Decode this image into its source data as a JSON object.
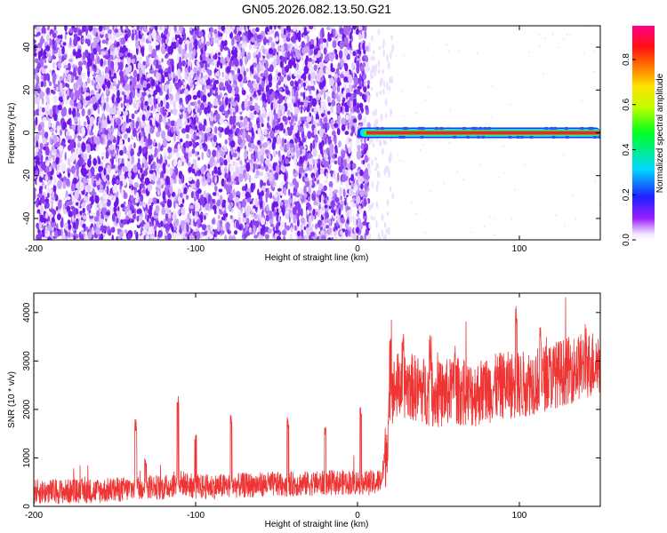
{
  "title": "GN05.2026.082.13.50.G21",
  "colors": {
    "spectrum_dots": "#7a1cf0",
    "spectrum_line_core": "#e8282a",
    "snr_line": "#ef3434",
    "frame": "#000000"
  },
  "chart_data": [
    {
      "type": "heatmap",
      "title": "GN05.2026.082.13.50.G21",
      "xlabel": "Height of straight line (km)",
      "ylabel": "Frequency (Hz)",
      "xlim": [
        -200,
        150
      ],
      "ylim": [
        -50,
        50
      ],
      "x_ticks": [
        "-200",
        "-100",
        "0",
        "100"
      ],
      "y_ticks": [
        "-40",
        "-20",
        "0",
        "20",
        "40"
      ],
      "colorbar": {
        "label": "Normalized spectral amplitude",
        "range": [
          0,
          0.95
        ],
        "ticks": [
          "0.0",
          "0.2",
          "0.4",
          "0.6",
          "0.8"
        ],
        "colormap": [
          "#ffffff",
          "#8a00ff",
          "#0000ff",
          "#00ffff",
          "#00ff00",
          "#ffff00",
          "#ff8000",
          "#ff0000",
          "#ff00a0"
        ]
      },
      "features": {
        "noise_region_x": [
          -200,
          7
        ],
        "sparse_region_x": [
          7,
          22
        ],
        "signal_line": {
          "x_start": 0,
          "x_end": 150,
          "frequency": 0,
          "amplitude": 0.9
        }
      },
      "grid": false
    },
    {
      "type": "line",
      "xlabel": "Height of straight line (km)",
      "ylabel": "SNR (10 * v/v)",
      "xlim": [
        -200,
        150
      ],
      "ylim": [
        0,
        4400
      ],
      "x_ticks": [
        "-200",
        "-100",
        "0",
        "100"
      ],
      "y_ticks": [
        "0",
        "1000",
        "2000",
        "3000",
        "4000"
      ],
      "grid": false,
      "series": [
        {
          "x": [
            -200,
            -180,
            -160,
            -140,
            -130,
            -120,
            -110,
            -100,
            -80,
            -60,
            -40,
            -20,
            -5,
            10,
            15,
            18,
            20,
            25,
            30,
            40,
            50,
            60,
            70,
            80,
            90,
            100,
            110,
            120,
            130,
            140,
            150
          ],
          "y": [
            300,
            310,
            320,
            360,
            420,
            380,
            500,
            400,
            420,
            450,
            460,
            480,
            500,
            480,
            550,
            1200,
            2300,
            2500,
            2500,
            2400,
            2300,
            2400,
            2300,
            2400,
            2500,
            2500,
            2600,
            2700,
            2800,
            2900,
            3000
          ],
          "peak_x": [
            -137,
            -131,
            -111,
            -100,
            -78,
            -43,
            -20,
            2,
            20,
            28,
            45,
            60,
            98,
            113,
            141
          ],
          "peak_y": [
            1800,
            1000,
            2400,
            1500,
            1900,
            1850,
            1700,
            2100,
            3500,
            3600,
            3600,
            3400,
            4300,
            3700,
            3900
          ]
        }
      ]
    }
  ]
}
